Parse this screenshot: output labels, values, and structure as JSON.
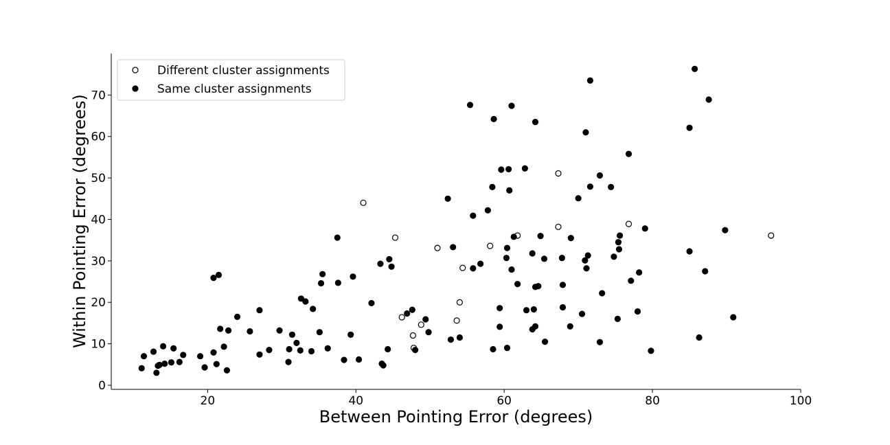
{
  "chart_data": {
    "type": "scatter",
    "title": "",
    "xlabel": "Between Pointing Error (degrees)",
    "ylabel": "Within Pointing Error (degrees)",
    "xlim": [
      7,
      100
    ],
    "ylim": [
      -1,
      80
    ],
    "xticks": [
      20,
      40,
      60,
      80,
      100
    ],
    "yticks": [
      0,
      10,
      20,
      30,
      40,
      50,
      60,
      70
    ],
    "grid": false,
    "legend_position": "upper-left",
    "series": [
      {
        "name": "Different cluster assignments",
        "marker": "open-circle",
        "color": "#000000",
        "points": [
          [
            41.0,
            44.0
          ],
          [
            45.3,
            35.6
          ],
          [
            51.0,
            33.1
          ],
          [
            46.2,
            16.4
          ],
          [
            47.7,
            12.0
          ],
          [
            47.8,
            9.0
          ],
          [
            48.8,
            14.6
          ],
          [
            53.6,
            15.6
          ],
          [
            54.0,
            20.0
          ],
          [
            54.4,
            28.3
          ],
          [
            58.1,
            33.6
          ],
          [
            61.8,
            36.1
          ],
          [
            67.3,
            51.1
          ],
          [
            67.3,
            38.2
          ],
          [
            76.8,
            38.9
          ],
          [
            96.0,
            36.1
          ]
        ]
      },
      {
        "name": "Same cluster assignments",
        "marker": "filled-circle",
        "color": "#000000",
        "points": [
          [
            11.1,
            4.1
          ],
          [
            11.4,
            7.0
          ],
          [
            12.7,
            8.1
          ],
          [
            13.1,
            3.0
          ],
          [
            13.3,
            4.7
          ],
          [
            13.5,
            4.9
          ],
          [
            14.0,
            9.4
          ],
          [
            14.2,
            5.2
          ],
          [
            15.1,
            5.5
          ],
          [
            15.4,
            8.9
          ],
          [
            16.2,
            5.6
          ],
          [
            16.7,
            7.3
          ],
          [
            19.0,
            7.0
          ],
          [
            19.6,
            4.3
          ],
          [
            20.8,
            7.9
          ],
          [
            20.8,
            25.9
          ],
          [
            21.2,
            5.1
          ],
          [
            21.5,
            26.6
          ],
          [
            21.7,
            13.6
          ],
          [
            22.2,
            9.3
          ],
          [
            22.6,
            3.6
          ],
          [
            22.8,
            13.2
          ],
          [
            24.0,
            16.5
          ],
          [
            25.7,
            13.0
          ],
          [
            27.0,
            18.1
          ],
          [
            27.0,
            7.4
          ],
          [
            28.3,
            8.5
          ],
          [
            29.7,
            13.2
          ],
          [
            30.9,
            5.6
          ],
          [
            31.0,
            8.7
          ],
          [
            31.4,
            12.2
          ],
          [
            32.0,
            10.2
          ],
          [
            32.5,
            8.4
          ],
          [
            32.6,
            20.9
          ],
          [
            33.2,
            20.2
          ],
          [
            34.0,
            8.2
          ],
          [
            34.2,
            18.4
          ],
          [
            35.1,
            12.8
          ],
          [
            35.3,
            24.6
          ],
          [
            35.5,
            26.8
          ],
          [
            36.2,
            8.9
          ],
          [
            37.5,
            35.6
          ],
          [
            37.6,
            24.7
          ],
          [
            38.4,
            6.1
          ],
          [
            39.3,
            12.2
          ],
          [
            39.6,
            26.2
          ],
          [
            40.4,
            6.2
          ],
          [
            42.1,
            19.8
          ],
          [
            43.3,
            29.3
          ],
          [
            43.5,
            5.2
          ],
          [
            43.7,
            4.8
          ],
          [
            44.3,
            8.7
          ],
          [
            44.5,
            30.4
          ],
          [
            44.8,
            28.6
          ],
          [
            46.9,
            17.3
          ],
          [
            47.6,
            18.2
          ],
          [
            48.0,
            8.5
          ],
          [
            49.4,
            15.9
          ],
          [
            49.8,
            12.8
          ],
          [
            52.4,
            45.0
          ],
          [
            52.8,
            11.0
          ],
          [
            53.1,
            33.3
          ],
          [
            54.0,
            11.5
          ],
          [
            55.4,
            67.6
          ],
          [
            55.8,
            28.2
          ],
          [
            55.8,
            40.9
          ],
          [
            56.8,
            29.3
          ],
          [
            57.8,
            42.2
          ],
          [
            58.4,
            47.8
          ],
          [
            58.5,
            8.7
          ],
          [
            58.6,
            64.2
          ],
          [
            59.4,
            18.6
          ],
          [
            59.4,
            14.1
          ],
          [
            59.6,
            52.0
          ],
          [
            60.3,
            30.7
          ],
          [
            60.4,
            33.1
          ],
          [
            60.4,
            9.0
          ],
          [
            60.6,
            52.1
          ],
          [
            60.7,
            47.0
          ],
          [
            61.0,
            27.9
          ],
          [
            61.0,
            67.4
          ],
          [
            61.3,
            35.8
          ],
          [
            61.8,
            24.4
          ],
          [
            62.8,
            52.3
          ],
          [
            63.0,
            18.1
          ],
          [
            63.8,
            31.8
          ],
          [
            63.8,
            13.5
          ],
          [
            64.0,
            18.3
          ],
          [
            64.2,
            14.2
          ],
          [
            64.2,
            63.5
          ],
          [
            64.2,
            23.7
          ],
          [
            64.6,
            23.9
          ],
          [
            64.9,
            36.0
          ],
          [
            65.4,
            30.5
          ],
          [
            65.5,
            10.5
          ],
          [
            67.8,
            30.7
          ],
          [
            67.9,
            24.2
          ],
          [
            67.9,
            18.8
          ],
          [
            68.9,
            14.2
          ],
          [
            69.0,
            35.5
          ],
          [
            70.0,
            45.1
          ],
          [
            70.5,
            17.2
          ],
          [
            70.9,
            30.1
          ],
          [
            71.0,
            61.0
          ],
          [
            71.1,
            28.2
          ],
          [
            71.3,
            31.3
          ],
          [
            71.6,
            47.9
          ],
          [
            71.6,
            73.5
          ],
          [
            72.9,
            50.6
          ],
          [
            72.9,
            10.4
          ],
          [
            73.2,
            22.2
          ],
          [
            74.4,
            47.8
          ],
          [
            74.8,
            31.0
          ],
          [
            75.3,
            16.0
          ],
          [
            75.4,
            34.5
          ],
          [
            75.5,
            32.8
          ],
          [
            75.6,
            36.1
          ],
          [
            76.8,
            55.8
          ],
          [
            77.1,
            25.2
          ],
          [
            78.0,
            17.8
          ],
          [
            78.2,
            27.2
          ],
          [
            79.0,
            37.8
          ],
          [
            79.8,
            8.3
          ],
          [
            85.0,
            62.1
          ],
          [
            85.0,
            32.3
          ],
          [
            85.7,
            76.3
          ],
          [
            86.3,
            11.5
          ],
          [
            87.1,
            27.5
          ],
          [
            87.6,
            68.9
          ],
          [
            89.8,
            37.4
          ],
          [
            90.9,
            16.4
          ]
        ]
      }
    ]
  }
}
